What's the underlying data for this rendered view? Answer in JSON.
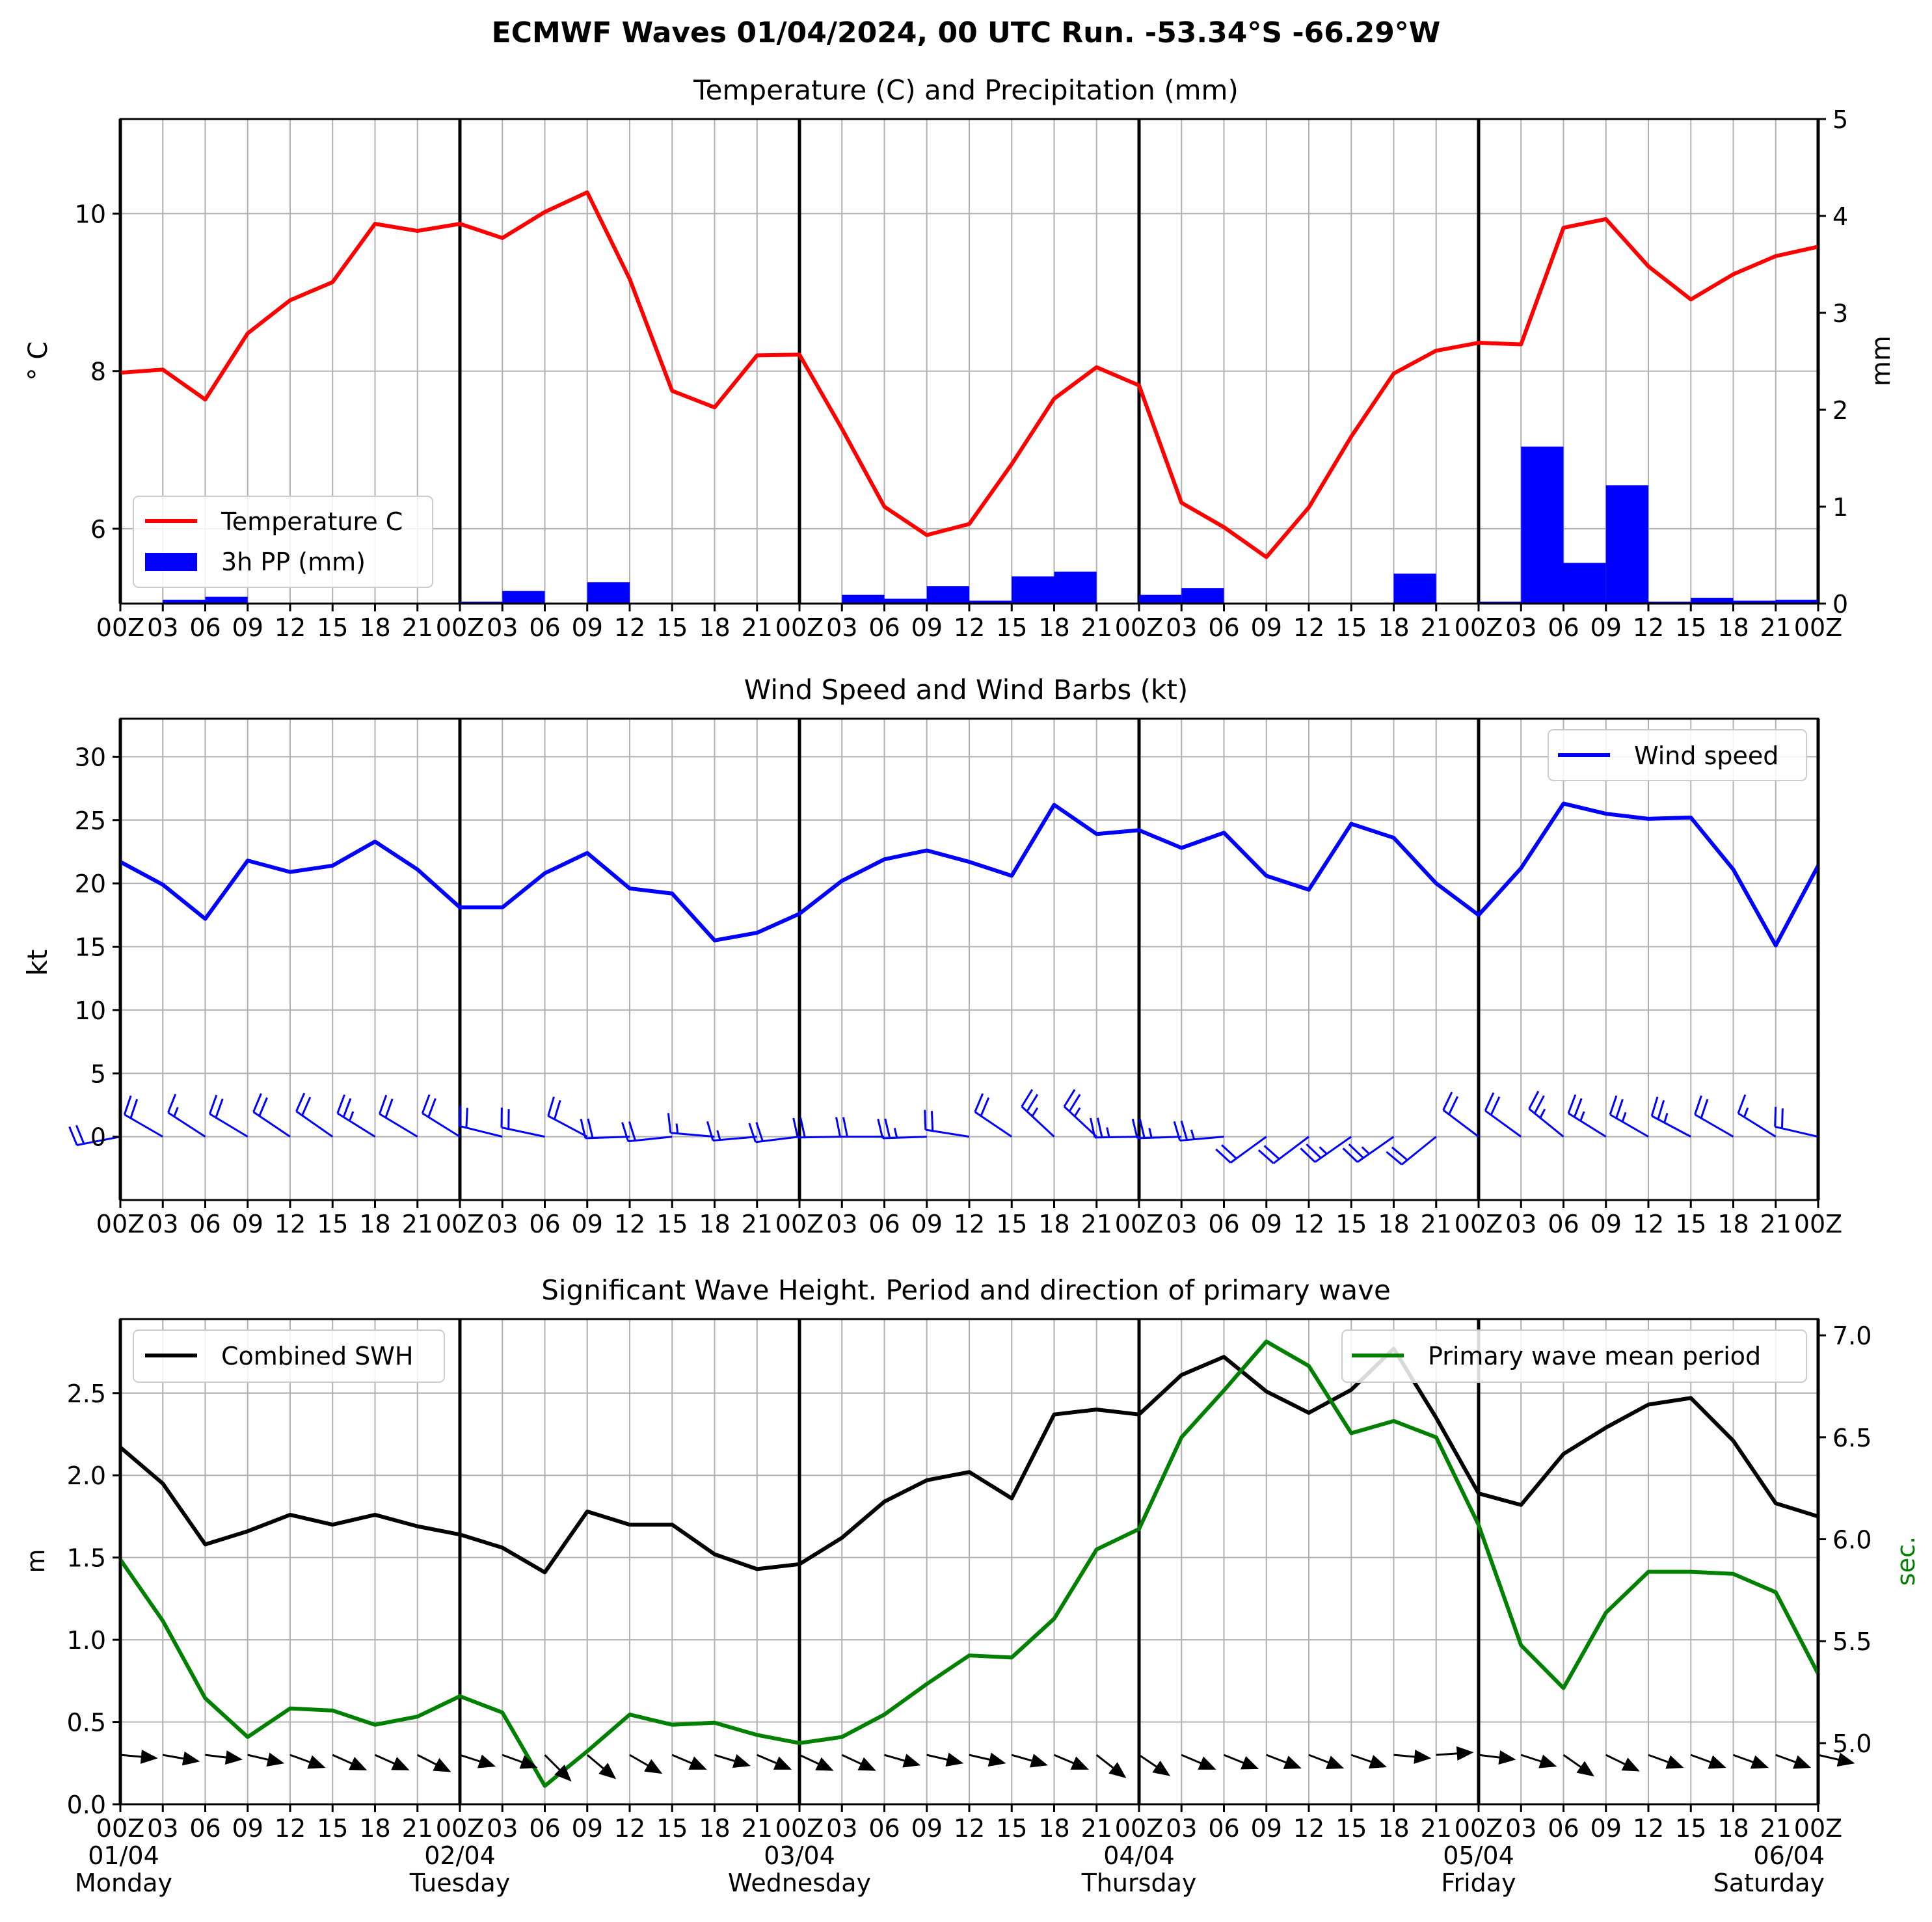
{
  "figure": {
    "title": "ECMWF Waves 01/04/2024, 00 UTC Run. -53.34°S -66.29°W"
  },
  "colors": {
    "temperature": "#ff0000",
    "precipitation": "#0000ff",
    "wind": "#0000ff",
    "swh": "#000000",
    "period": "#008000",
    "grid": "#b0b0b0"
  },
  "time_axis": {
    "tick_labels": [
      "00Z",
      "03",
      "06",
      "09",
      "12",
      "15",
      "18",
      "21",
      "00Z",
      "03",
      "06",
      "09",
      "12",
      "15",
      "18",
      "21",
      "00Z",
      "03",
      "06",
      "09",
      "12",
      "15",
      "18",
      "21",
      "00Z",
      "03",
      "06",
      "09",
      "12",
      "15",
      "18",
      "21",
      "00Z",
      "03",
      "06",
      "09",
      "12",
      "15",
      "18",
      "21",
      "00Z"
    ],
    "day_dates": [
      "01/04",
      "02/04",
      "03/04",
      "04/04",
      "05/04",
      "06/04"
    ],
    "day_names": [
      "Monday",
      "Tuesday",
      "Wednesday",
      "Thursday",
      "Friday",
      "Saturday"
    ]
  },
  "chart_data": [
    {
      "type": "line",
      "title": "Temperature (C) and Precipitation (mm)",
      "x_unit": "hours since 01/04 00Z",
      "x": [
        0,
        3,
        6,
        9,
        12,
        15,
        18,
        21,
        24,
        27,
        30,
        33,
        36,
        39,
        42,
        45,
        48,
        51,
        54,
        57,
        60,
        63,
        66,
        69,
        72,
        75,
        78,
        81,
        84,
        87,
        90,
        93,
        96,
        99,
        102,
        105,
        108,
        111,
        114,
        117,
        120
      ],
      "xlim": [
        0,
        120
      ],
      "ylabel": "° C",
      "y2label": "mm",
      "ylim": [
        5.05,
        11.2
      ],
      "y2lim": [
        0,
        5
      ],
      "yticks": [
        "6",
        "8",
        "10"
      ],
      "y2ticks": [
        "0",
        "1",
        "2",
        "3",
        "4",
        "5"
      ],
      "legend_position": "lower-left",
      "series": [
        {
          "name": "Temperature C",
          "axis": "left",
          "style": "line",
          "values": [
            7.98,
            8.02,
            7.64,
            8.48,
            8.9,
            9.13,
            9.87,
            9.78,
            9.87,
            9.69,
            10.02,
            10.27,
            9.17,
            7.75,
            7.54,
            8.2,
            8.21,
            7.27,
            6.28,
            5.92,
            6.06,
            6.82,
            7.65,
            8.05,
            7.82,
            6.33,
            6.02,
            5.64,
            6.27,
            7.17,
            7.97,
            8.26,
            8.36,
            8.34,
            9.82,
            9.93,
            9.33,
            8.91,
            9.23,
            9.46,
            9.58
          ]
        },
        {
          "name": "3h PP (mm)",
          "axis": "right",
          "style": "bar",
          "values": [
            0,
            0.04,
            0.07,
            0,
            0,
            0,
            0,
            0,
            0.02,
            0.13,
            0,
            0.22,
            0,
            0,
            0,
            0,
            0,
            0.09,
            0.05,
            0.18,
            0.03,
            0.28,
            0.33,
            0,
            0.09,
            0.16,
            0,
            0,
            0,
            0,
            0.31,
            0,
            0.02,
            1.62,
            0.42,
            1.22,
            0.02,
            0.06,
            0.03,
            0,
            0.04
          ]
        }
      ]
    },
    {
      "type": "line",
      "title": "Wind Speed and Wind Barbs (kt)",
      "x_unit": "hours since 01/04 00Z",
      "x": [
        0,
        3,
        6,
        9,
        12,
        15,
        18,
        21,
        24,
        27,
        30,
        33,
        36,
        39,
        42,
        45,
        48,
        51,
        54,
        57,
        60,
        63,
        66,
        69,
        72,
        75,
        78,
        81,
        84,
        87,
        90,
        93,
        96,
        99,
        102,
        105,
        108,
        111,
        114,
        117,
        120
      ],
      "xlim": [
        0,
        120
      ],
      "ylabel": "kt",
      "ylim": [
        -5,
        33
      ],
      "yticks": [
        "0",
        "5",
        "10",
        "15",
        "20",
        "25",
        "30"
      ],
      "legend_position": "upper-right",
      "series": [
        {
          "name": "Wind speed",
          "values": [
            21.7,
            19.9,
            17.2,
            21.8,
            20.9,
            21.4,
            23.3,
            21.1,
            18.1,
            18.1,
            20.8,
            22.4,
            19.6,
            19.2,
            15.5,
            16.1,
            17.6,
            20.2,
            21.9,
            22.6,
            21.7,
            20.6,
            26.2,
            23.9,
            24.2,
            22.8,
            24.0,
            20.6,
            19.5,
            24.7,
            23.6,
            20.0,
            17.5,
            21.2,
            26.3,
            25.5,
            25.1,
            25.2,
            21.1,
            15.1,
            21.4
          ]
        },
        {
          "name": "wind barbs",
          "style": "barbs",
          "direction_from_deg": [
            259,
            300,
            303,
            301,
            304,
            305,
            302,
            301,
            302,
            284,
            282,
            298,
            268,
            264,
            275,
            265,
            263,
            269,
            270,
            268,
            279,
            304,
            313,
            313,
            269,
            268,
            265,
            234,
            233,
            235,
            235,
            231,
            307,
            306,
            309,
            302,
            300,
            298,
            300,
            302,
            283
          ]
        }
      ]
    },
    {
      "type": "line",
      "title": "Significant Wave Height. Period and direction of primary wave",
      "x_unit": "hours since 01/04 00Z",
      "x": [
        0,
        3,
        6,
        9,
        12,
        15,
        18,
        21,
        24,
        27,
        30,
        33,
        36,
        39,
        42,
        45,
        48,
        51,
        54,
        57,
        60,
        63,
        66,
        69,
        72,
        75,
        78,
        81,
        84,
        87,
        90,
        93,
        96,
        99,
        102,
        105,
        108,
        111,
        114,
        117,
        120
      ],
      "xlim": [
        0,
        120
      ],
      "ylabel": "m",
      "y2label": "sec.",
      "ylim": [
        0,
        2.95
      ],
      "y2lim": [
        4.7,
        7.08
      ],
      "yticks": [
        "0.0",
        "0.5",
        "1.0",
        "1.5",
        "2.0",
        "2.5"
      ],
      "y2ticks": [
        "5.0",
        "5.5",
        "6.0",
        "6.5",
        "7.0"
      ],
      "legend_positions": [
        "upper-left",
        "upper-right"
      ],
      "series": [
        {
          "name": "Combined SWH",
          "axis": "left",
          "values": [
            2.17,
            1.95,
            1.58,
            1.66,
            1.76,
            1.7,
            1.76,
            1.69,
            1.64,
            1.56,
            1.41,
            1.78,
            1.7,
            1.7,
            1.52,
            1.43,
            1.46,
            1.62,
            1.84,
            1.97,
            2.02,
            1.86,
            2.37,
            2.4,
            2.37,
            2.61,
            2.72,
            2.51,
            2.38,
            2.52,
            2.77,
            2.35,
            1.89,
            1.82,
            2.13,
            2.29,
            2.43,
            2.47,
            2.21,
            1.83,
            1.75
          ]
        },
        {
          "name": "Primary wave mean period",
          "axis": "right",
          "values": [
            5.9,
            5.6,
            5.22,
            5.03,
            5.17,
            5.16,
            5.09,
            5.13,
            5.23,
            5.15,
            4.79,
            4.96,
            5.14,
            5.09,
            5.1,
            5.04,
            5,
            5.03,
            5.14,
            5.29,
            5.43,
            5.42,
            5.61,
            5.95,
            6.05,
            6.5,
            6.73,
            6.97,
            6.85,
            6.52,
            6.58,
            6.5,
            6.07,
            5.48,
            5.27,
            5.64,
            5.84,
            5.84,
            5.83,
            5.74,
            5.34
          ]
        },
        {
          "name": "primary wave direction",
          "style": "arrows",
          "direction_to_deg": [
            95,
            100,
            97,
            103,
            110,
            114,
            114,
            117,
            108,
            110,
            135,
            130,
            120,
            113,
            107,
            113,
            115,
            115,
            106,
            103,
            103,
            106,
            113,
            128,
            124,
            113,
            112,
            111,
            111,
            109,
            95,
            86,
            97,
            108,
            125,
            116,
            110,
            110,
            110,
            110,
            103
          ]
        }
      ]
    }
  ]
}
